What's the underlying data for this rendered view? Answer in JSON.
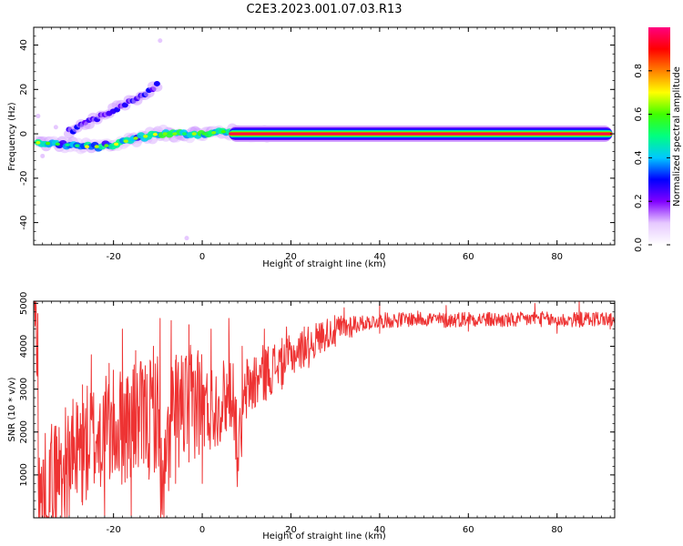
{
  "title": "C2E3.2023.001.07.03.R13",
  "chart_data": [
    {
      "type": "heatmap",
      "xlabel": "Height of straight line (km)",
      "ylabel": "Frequency (Hz)",
      "xlim": [
        -38,
        93
      ],
      "ylim": [
        -50,
        48
      ],
      "xticks": [
        -20,
        0,
        20,
        40,
        60,
        80
      ],
      "yticks": [
        -40,
        -20,
        0,
        20,
        40
      ],
      "colorbar": {
        "label": "Normalized spectral amplitude",
        "range": [
          0,
          1
        ],
        "ticks": [
          0.0,
          0.2,
          0.4,
          0.6,
          0.8
        ],
        "colormap": [
          "#ffffff",
          "#e6c8ff",
          "#8000ff",
          "#0000ff",
          "#00c8ff",
          "#00ff80",
          "#40ff00",
          "#ffff00",
          "#ff8000",
          "#ff0000",
          "#ff0080"
        ]
      },
      "ridges": [
        {
          "name": "",
          "points": [
            [
              -37,
              -4
            ],
            [
              -30,
              -5
            ],
            [
              -25,
              -6
            ],
            [
              -20,
              -5
            ],
            [
              -15,
              -2
            ],
            [
              -10,
              0
            ],
            [
              -5,
              0
            ],
            [
              0,
              0
            ],
            [
              5,
              1
            ],
            [
              10,
              0
            ],
            [
              15,
              0
            ],
            [
              20,
              0
            ],
            [
              93,
              0
            ]
          ]
        },
        {
          "name": "",
          "points": [
            [
              -30,
              1
            ],
            [
              -25,
              6
            ],
            [
              -20,
              11
            ],
            [
              -15,
              16
            ],
            [
              -10,
              22
            ]
          ]
        }
      ],
      "grid": false
    },
    {
      "type": "line",
      "xlabel": "Height of straight line (km)",
      "ylabel": "SNR (10 * v/v)",
      "xlim": [
        -38,
        93
      ],
      "ylim": [
        0,
        5050
      ],
      "xticks": [
        -20,
        0,
        20,
        40,
        60,
        80
      ],
      "yticks": [
        1000,
        2000,
        3000,
        4000,
        5000
      ],
      "line_color": "#ee3333",
      "series": [
        {
          "x": [
            -37,
            -34,
            -31,
            -28,
            -25,
            -22,
            -19,
            -16,
            -13,
            -10,
            -9,
            -7,
            -4,
            -1,
            1,
            4,
            7,
            8,
            10,
            13,
            16,
            19,
            22,
            25,
            28,
            31,
            34,
            37,
            40,
            45,
            50,
            55,
            60,
            65,
            70,
            75,
            80,
            85,
            90,
            93
          ],
          "y": [
            300,
            900,
            1200,
            1500,
            1800,
            2000,
            2100,
            2200,
            2300,
            2500,
            200,
            2400,
            2600,
            2800,
            2500,
            2700,
            3000,
            1400,
            3000,
            3300,
            3500,
            3700,
            3900,
            4100,
            4300,
            4400,
            4500,
            4550,
            4600,
            4620,
            4650,
            4600,
            4650,
            4620,
            4600,
            4650,
            4600,
            4620,
            4650,
            4600
          ],
          "peaks": [
            [
              -33,
              1600
            ],
            [
              -29,
              1900
            ],
            [
              -27,
              3100
            ],
            [
              -25,
              3800
            ],
            [
              -21,
              3600
            ],
            [
              -18,
              4400
            ],
            [
              -15,
              3900
            ],
            [
              -11,
              4000
            ],
            [
              -9.5,
              4650
            ],
            [
              -7,
              4600
            ],
            [
              -3,
              4500
            ],
            [
              2,
              4400
            ],
            [
              6,
              4650
            ],
            [
              9,
              4000
            ],
            [
              14,
              4400
            ],
            [
              19,
              4450
            ],
            [
              23,
              4450
            ],
            [
              27,
              4500
            ],
            [
              32,
              4900
            ],
            [
              40,
              5000
            ],
            [
              55,
              4950
            ],
            [
              75,
              5000
            ],
            [
              85,
              5050
            ]
          ],
          "troughs": [
            [
              -35,
              50
            ],
            [
              -30,
              50
            ],
            [
              -27,
              300
            ],
            [
              -22,
              50
            ],
            [
              -16,
              50
            ],
            [
              -12,
              900
            ],
            [
              -9,
              200
            ],
            [
              -6,
              800
            ],
            [
              -3,
              1300
            ],
            [
              0,
              800
            ],
            [
              4,
              1800
            ],
            [
              8,
              1400
            ],
            [
              12,
              2600
            ],
            [
              18,
              3000
            ],
            [
              24,
              3500
            ],
            [
              30,
              4000
            ],
            [
              40,
              4300
            ],
            [
              60,
              4350
            ],
            [
              80,
              4300
            ],
            [
              92,
              4400
            ]
          ]
        }
      ],
      "grid": false
    }
  ]
}
